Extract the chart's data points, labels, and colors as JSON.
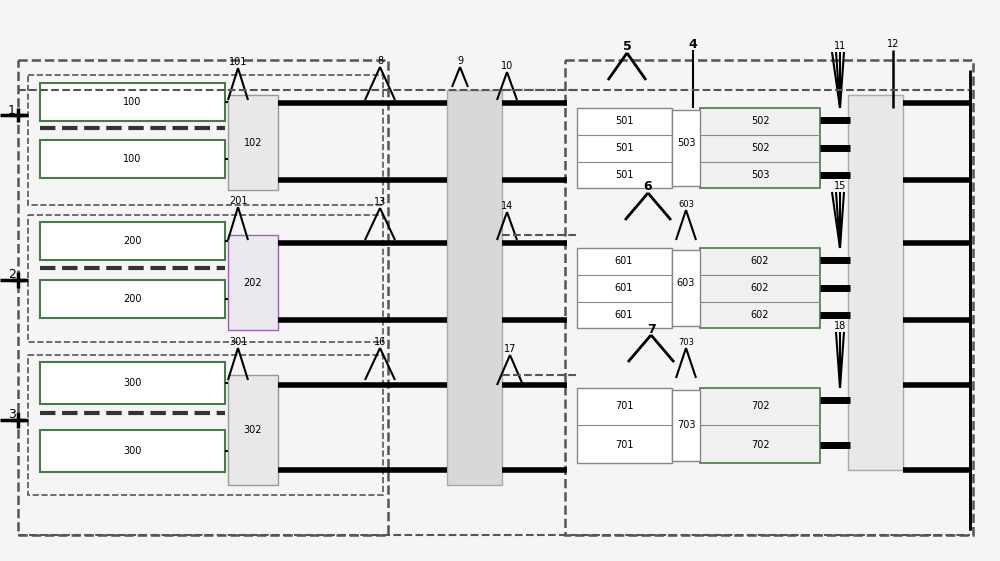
{
  "fig_width": 10.0,
  "fig_height": 5.61,
  "bg_color": "#f5f5f5",
  "white": "#ffffff",
  "gray_fill": "#e0e0e0",
  "light_gray": "#d8d8d8",
  "green_border": "#4a7a4a",
  "purple_border": "#9966aa",
  "dark": "#111111",
  "mid_gray": "#888888",
  "dash_gray": "#555555"
}
